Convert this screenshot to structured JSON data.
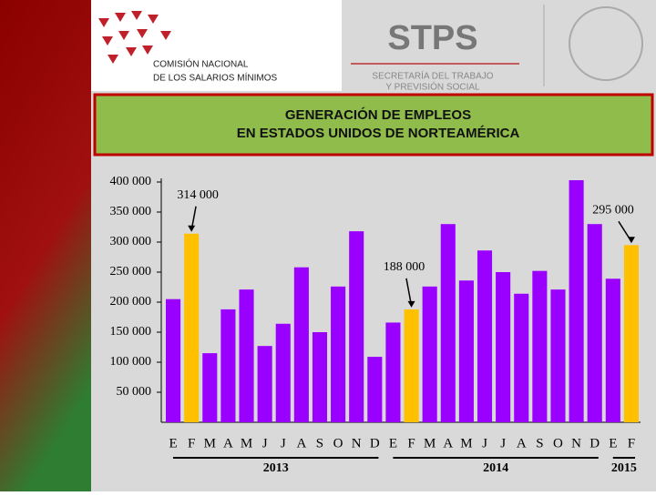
{
  "header": {
    "org_line1": "COMISIÓN NACIONAL",
    "org_line2": "DE LOS SALARIOS MÍNIMOS",
    "agency": "STPS",
    "agency_line1": "SECRETARÍA DEL TRABAJO",
    "agency_line2": "Y PREVISIÓN SOCIAL"
  },
  "chart_data": {
    "type": "bar",
    "title_line1": "GENERACIÓN DE EMPLEOS",
    "title_line2": "EN ESTADOS UNIDOS DE NORTEAMÉRICA",
    "categories": [
      "E",
      "F",
      "M",
      "A",
      "M",
      "J",
      "J",
      "A",
      "S",
      "O",
      "N",
      "D",
      "E",
      "F",
      "M",
      "A",
      "M",
      "J",
      "J",
      "A",
      "S",
      "O",
      "N",
      "D",
      "E",
      "F"
    ],
    "values": [
      205000,
      314000,
      115000,
      188000,
      221000,
      127000,
      164000,
      258000,
      150000,
      226000,
      318000,
      109000,
      166000,
      188000,
      226000,
      330000,
      236000,
      286000,
      250000,
      214000,
      252000,
      221000,
      403000,
      330000,
      239000,
      295000
    ],
    "value_labels": [
      null,
      "314 000",
      null,
      null,
      null,
      null,
      null,
      null,
      null,
      null,
      null,
      null,
      null,
      "188 000",
      null,
      null,
      null,
      null,
      null,
      null,
      null,
      null,
      null,
      null,
      null,
      "295 000"
    ],
    "colors": [
      "#9900ff",
      "#ffc000",
      "#9900ff",
      "#9900ff",
      "#9900ff",
      "#9900ff",
      "#9900ff",
      "#9900ff",
      "#9900ff",
      "#9900ff",
      "#9900ff",
      "#9900ff",
      "#9900ff",
      "#ffc000",
      "#9900ff",
      "#9900ff",
      "#9900ff",
      "#9900ff",
      "#9900ff",
      "#9900ff",
      "#9900ff",
      "#9900ff",
      "#9900ff",
      "#9900ff",
      "#9900ff",
      "#ffc000"
    ],
    "years": [
      "2013",
      "2014",
      "2015"
    ],
    "ylim": [
      0,
      400000
    ],
    "yticks": [
      {
        "value": 50000,
        "label": "50 000"
      },
      {
        "value": 100000,
        "label": "100 000"
      },
      {
        "value": 150000,
        "label": "150 000"
      },
      {
        "value": 200000,
        "label": "200 000"
      },
      {
        "value": 250000,
        "label": "250 000"
      },
      {
        "value": 300000,
        "label": "300 000"
      },
      {
        "value": 350000,
        "label": "350 000"
      },
      {
        "value": 400000,
        "label": "400 000"
      }
    ]
  }
}
